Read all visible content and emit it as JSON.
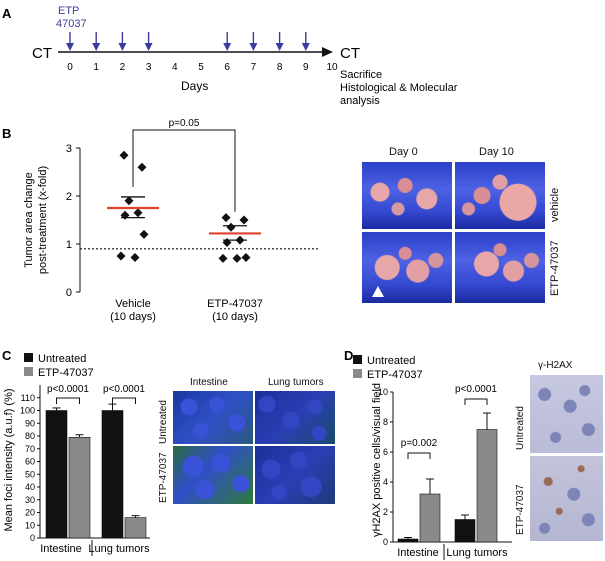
{
  "panel_labels": [
    "A",
    "B",
    "C",
    "D"
  ],
  "panel_a": {
    "left_label": "CT",
    "right_label": "CT",
    "drug_label_line1": "ETP",
    "drug_label_line2": "47037",
    "ticks": [
      "0",
      "1",
      "2",
      "3",
      "4",
      "5",
      "6",
      "7",
      "8",
      "9",
      "10"
    ],
    "dosed_days": [
      0,
      1,
      2,
      3,
      6,
      7,
      8,
      9
    ],
    "axis_label": "Days",
    "endpoint_line1": "Sacrifice",
    "endpoint_line2": "Histological & Molecular",
    "endpoint_line3": "analysis",
    "arrow_color": "#3c3c9e"
  },
  "panel_b_images": {
    "col_labels": [
      "Day 0",
      "Day 10"
    ],
    "row_labels": [
      "vehicle",
      "ETP-47037"
    ]
  },
  "panel_c_images": {
    "col_labels": [
      "Intestine",
      "Lung tumors"
    ],
    "row_labels": [
      "Untreated",
      "ETP-47037"
    ]
  },
  "panel_d_images": {
    "title": "γ-H2AX",
    "row_labels": [
      "Untreated",
      "ETP-47037"
    ]
  },
  "chart_data": [
    {
      "id": "B",
      "type": "scatter",
      "ylabel_line1": "Tumor area change",
      "ylabel_line2": "post-treatment (x-fold)",
      "ylim": [
        0,
        3
      ],
      "yticks": [
        "0",
        "1",
        "2",
        "3"
      ],
      "categories": [
        "Vehicle\n(10 days)",
        "ETP-47037\n(10 days)"
      ],
      "category_line1": [
        "Vehicle",
        "ETP-47037"
      ],
      "category_line2": [
        "(10 days)",
        "(10 days)"
      ],
      "points": [
        [
          2.85,
          2.6,
          1.9,
          1.65,
          1.6,
          1.2,
          0.75,
          0.72
        ],
        [
          1.55,
          1.5,
          1.35,
          1.08,
          1.03,
          0.72,
          0.7,
          0.7
        ]
      ],
      "means": [
        1.75,
        1.22
      ],
      "sem_upper": [
        1.98,
        1.38
      ],
      "sem_lower": [
        1.55,
        1.08
      ],
      "reference_line": 0.9,
      "p_value": "p=0.05",
      "mean_color": "#e0402c"
    },
    {
      "id": "C",
      "type": "bar",
      "ylabel": "Mean foci intensity (a.u.f) (%)",
      "ylim": [
        0,
        120
      ],
      "yticks": [
        "0",
        "10",
        "20",
        "30",
        "40",
        "50",
        "60",
        "70",
        "80",
        "90",
        "100",
        "110"
      ],
      "legend": [
        "Untreated",
        "ETP-47037"
      ],
      "groups": [
        "Intestine",
        "Lung tumors"
      ],
      "series": [
        {
          "name": "Untreated",
          "values": [
            100,
            100
          ],
          "errors": [
            2,
            5
          ],
          "color": "#111111"
        },
        {
          "name": "ETP-47037",
          "values": [
            79,
            16
          ],
          "errors": [
            2,
            1.5
          ],
          "color": "#8a8a8a"
        }
      ],
      "p_values": [
        "p<0.0001",
        "p<0.0001"
      ]
    },
    {
      "id": "D",
      "type": "bar",
      "ylabel": "γH2AX positive cells/visual field",
      "ylim": [
        0,
        10
      ],
      "yticks": [
        "0",
        "2",
        "4",
        "6",
        "8",
        "10"
      ],
      "legend": [
        "Untreated",
        "ETP-47037"
      ],
      "groups": [
        "Intestine",
        "Lung tumors"
      ],
      "series": [
        {
          "name": "Untreated",
          "values": [
            0.2,
            1.5
          ],
          "errors": [
            0.1,
            0.3
          ],
          "color": "#111111"
        },
        {
          "name": "ETP-47037",
          "values": [
            3.2,
            7.5
          ],
          "errors": [
            1.0,
            1.1
          ],
          "color": "#8a8a8a"
        }
      ],
      "p_values": [
        "p=0.002",
        "p<0.0001"
      ]
    }
  ]
}
